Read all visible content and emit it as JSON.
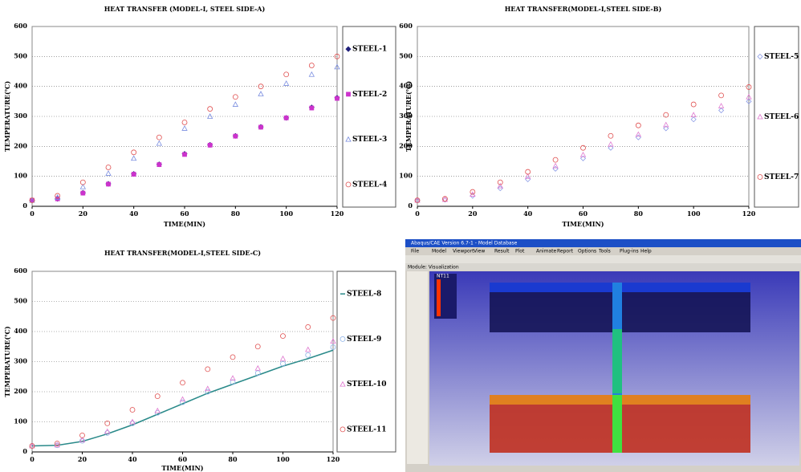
{
  "chart_data": [
    {
      "type": "line",
      "title": "HEAT TRANSFER (MODEL-Ⅰ, STEEL SIDE-A)",
      "x_label": "TIME(MIN)",
      "y_label": "TEMPERATURE(℃)",
      "x": [
        0,
        10,
        20,
        30,
        40,
        50,
        60,
        70,
        80,
        90,
        100,
        110,
        120
      ],
      "xlim": [
        0,
        120
      ],
      "xticks": [
        0,
        20,
        40,
        60,
        80,
        100,
        120
      ],
      "ylim": [
        0,
        600
      ],
      "yticks": [
        0,
        100,
        200,
        300,
        400,
        500,
        600
      ],
      "grid": true,
      "series": [
        {
          "name": "STEEL-1",
          "color": "#1f1f7a",
          "marker": "diamond",
          "filled": true,
          "values": [
            20,
            25,
            45,
            75,
            108,
            140,
            175,
            205,
            235,
            265,
            295,
            330,
            362
          ]
        },
        {
          "name": "STEEL-2",
          "color": "#cc33cc",
          "marker": "square",
          "filled": true,
          "values": [
            20,
            25,
            44,
            74,
            107,
            139,
            173,
            204,
            234,
            264,
            295,
            328,
            360
          ]
        },
        {
          "name": "STEEL-3",
          "color": "#7b8ee0",
          "marker": "triangle",
          "filled": false,
          "values": [
            20,
            30,
            65,
            110,
            160,
            210,
            260,
            300,
            340,
            375,
            410,
            440,
            465
          ]
        },
        {
          "name": "STEEL-4",
          "color": "#e05050",
          "marker": "circle",
          "filled": false,
          "values": [
            20,
            35,
            80,
            130,
            180,
            230,
            280,
            325,
            365,
            400,
            440,
            470,
            500
          ]
        }
      ]
    },
    {
      "type": "line",
      "title": "HEAT TRANSFER(MODEL-Ⅰ,STEEL SIDE-B)",
      "x_label": "TIME(MIN)",
      "y_label": "TEMPERATURE(℃)",
      "x": [
        0,
        10,
        20,
        30,
        40,
        50,
        60,
        70,
        80,
        90,
        100,
        110,
        120
      ],
      "xlim": [
        0,
        120
      ],
      "xticks": [
        0,
        20,
        40,
        60,
        80,
        100,
        120
      ],
      "ylim": [
        0,
        600
      ],
      "yticks": [
        0,
        100,
        200,
        300,
        400,
        500,
        600
      ],
      "grid": true,
      "series": [
        {
          "name": "STEEL-5",
          "color": "#8a9ae6",
          "marker": "diamond",
          "filled": false,
          "values": [
            20,
            22,
            35,
            60,
            90,
            125,
            160,
            195,
            230,
            260,
            290,
            320,
            350
          ]
        },
        {
          "name": "STEEL-6",
          "color": "#e07ad0",
          "marker": "triangle",
          "filled": false,
          "values": [
            20,
            23,
            40,
            68,
            100,
            135,
            172,
            207,
            240,
            272,
            305,
            335,
            365
          ]
        },
        {
          "name": "STEEL-7",
          "color": "#e05050",
          "marker": "circle",
          "filled": false,
          "values": [
            20,
            25,
            48,
            80,
            115,
            155,
            195,
            235,
            270,
            305,
            340,
            370,
            398
          ]
        }
      ]
    },
    {
      "type": "line",
      "title": "HEAT TRANSFER(MODEL-Ⅰ,STEEL SIDE-C)",
      "x_label": "TIME(MIN)",
      "y_label": "TEMPERATURE(℃)",
      "x": [
        0,
        10,
        20,
        30,
        40,
        50,
        60,
        70,
        80,
        90,
        100,
        110,
        120
      ],
      "xlim": [
        0,
        120
      ],
      "xticks": [
        0,
        20,
        40,
        60,
        80,
        100,
        120
      ],
      "ylim": [
        0,
        600
      ],
      "yticks": [
        0,
        100,
        200,
        300,
        400,
        500,
        600
      ],
      "grid": true,
      "series": [
        {
          "name": "STEEL-8",
          "color": "#2a8a8a",
          "marker": "none",
          "filled": false,
          "values": [
            20,
            22,
            35,
            60,
            90,
            125,
            160,
            195,
            225,
            255,
            285,
            310,
            338
          ]
        },
        {
          "name": "STEEL-9",
          "color": "#8ab0e6",
          "marker": "circle",
          "filled": false,
          "values": [
            20,
            22,
            37,
            63,
            95,
            130,
            165,
            200,
            232,
            262,
            293,
            322,
            348
          ]
        },
        {
          "name": "STEEL-10",
          "color": "#e07ad0",
          "marker": "triangle",
          "filled": false,
          "values": [
            20,
            23,
            40,
            68,
            100,
            137,
            175,
            210,
            245,
            278,
            310,
            340,
            368
          ]
        },
        {
          "name": "STEEL-11",
          "color": "#e05050",
          "marker": "circle",
          "filled": false,
          "values": [
            20,
            28,
            55,
            95,
            140,
            185,
            230,
            275,
            315,
            350,
            385,
            415,
            445
          ]
        }
      ]
    }
  ],
  "screenshot": {
    "window_title": "Abaqus/CAE Version 6.7-1 - Model Database",
    "menu": [
      "File",
      "Model",
      "Viewport",
      "View",
      "Result",
      "Plot",
      "Animate",
      "Report",
      "Options",
      "Tools",
      "Plug-ins",
      "Help"
    ],
    "module": "Module: Visualization",
    "legend_title": "NT11"
  }
}
